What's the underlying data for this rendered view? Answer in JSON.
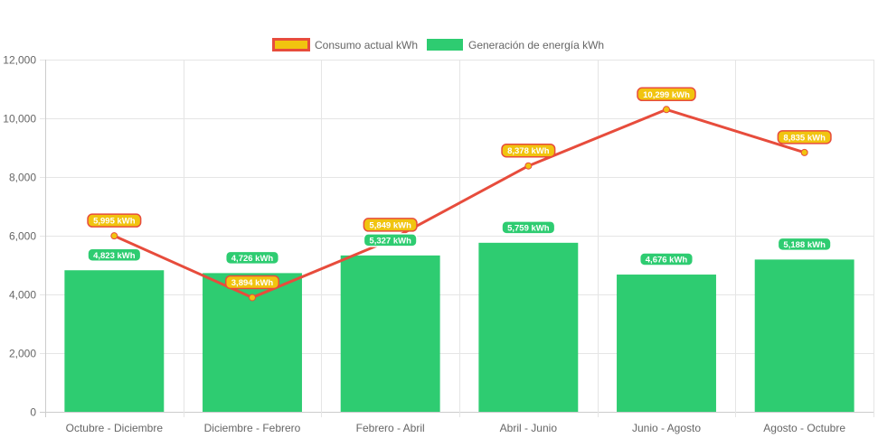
{
  "chart_data": {
    "type": "bar",
    "title": "",
    "xlabel": "",
    "ylabel": "",
    "ylim": [
      0,
      12000
    ],
    "y_ticks": [
      "0",
      "2,000",
      "4,000",
      "6,000",
      "8,000",
      "10,000",
      "12,000"
    ],
    "y_tick_values": [
      0,
      2000,
      4000,
      6000,
      8000,
      10000,
      12000
    ],
    "grid": true,
    "legend_position": "top-center",
    "categories": [
      "Octubre - Diciembre",
      "Diciembre - Febrero",
      "Febrero - Abril",
      "Abril - Junio",
      "Junio - Agosto",
      "Agosto - Octubre"
    ],
    "series": [
      {
        "name": "Consumo actual kWh",
        "type": "line",
        "color": "#e74c3c",
        "point_color": "#f1c40f",
        "values": [
          5995,
          3894,
          5849,
          8378,
          10299,
          8835
        ],
        "labels": [
          "5,995 kWh",
          "3,894 kWh",
          "5,849 kWh",
          "8,378 kWh",
          "10,299 kWh",
          "8,835 kWh"
        ]
      },
      {
        "name": "Generación de energía kWh",
        "type": "bar",
        "color": "#2ecc71",
        "values": [
          4823,
          4726,
          5327,
          5759,
          4676,
          5188
        ],
        "labels": [
          "4,823 kWh",
          "4,726 kWh",
          "5,327 kWh",
          "5,759 kWh",
          "4,676 kWh",
          "5,188 kWh"
        ]
      }
    ]
  }
}
